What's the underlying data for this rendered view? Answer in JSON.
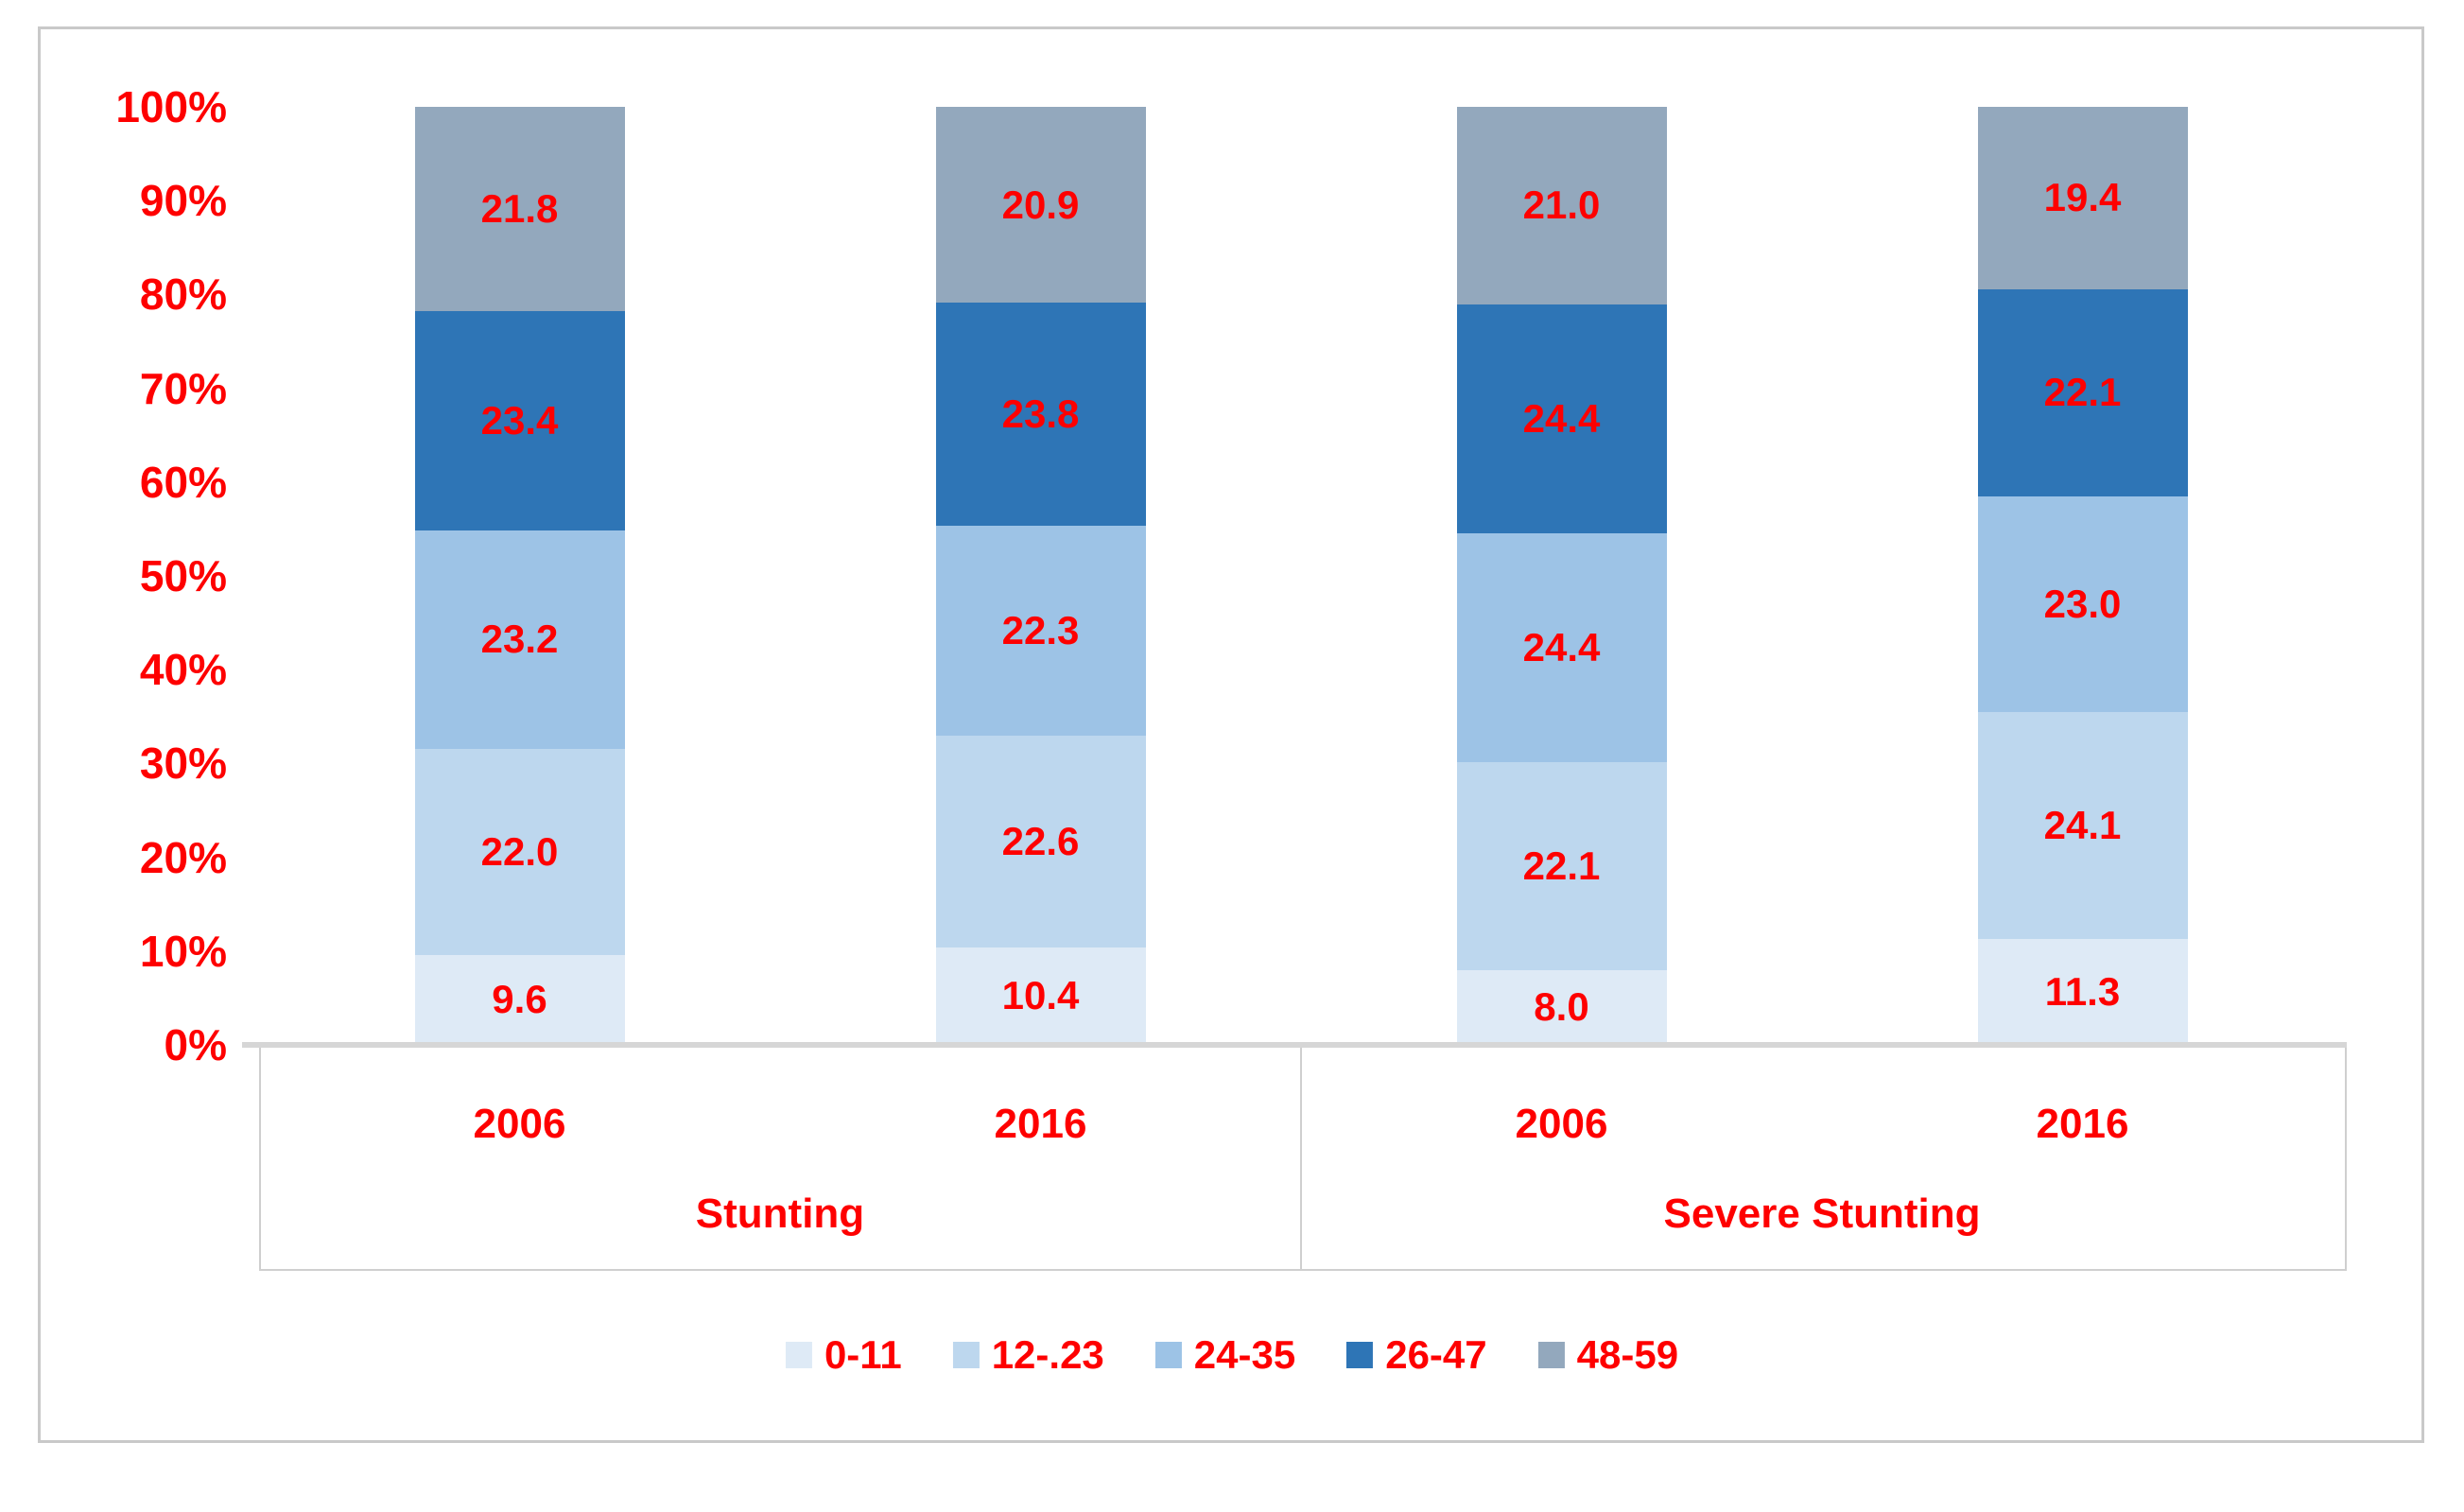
{
  "figure": {
    "background": "#FFFFFF",
    "border_color": "#C9C9C9",
    "text_color": "#FE0000"
  },
  "chart_data": {
    "type": "bar",
    "subtype": "stacked-100-percent-column",
    "title": "",
    "xlabel": "",
    "ylabel": "",
    "grid": false,
    "legend_position": "bottom",
    "axis_label_color": "#FE0000",
    "data_label_color": "#FE0000",
    "y_axis": {
      "min": 0,
      "max": 100,
      "tick_labels": [
        "100%",
        "90%",
        "80%",
        "70%",
        "60%",
        "50%",
        "40%",
        "30%",
        "20%",
        "10%",
        "0%"
      ]
    },
    "series": [
      {
        "name": "0-11",
        "color": "#DEEAF6"
      },
      {
        "name": "12-.23",
        "color": "#BDD7EE"
      },
      {
        "name": "24-35",
        "color": "#9DC3E6"
      },
      {
        "name": "26-47",
        "color": "#2E75B6"
      },
      {
        "name": "48-59",
        "color": "#93A8BD"
      }
    ],
    "groups": [
      {
        "label": "Stunting",
        "bars": [
          {
            "label": "2006",
            "values": [
              9.6,
              22.0,
              23.2,
              23.4,
              21.8
            ]
          },
          {
            "label": "2016",
            "values": [
              10.4,
              22.6,
              22.3,
              23.8,
              20.9
            ]
          }
        ]
      },
      {
        "label": "Severe Stunting",
        "bars": [
          {
            "label": "2006",
            "values": [
              8.0,
              22.1,
              24.4,
              24.4,
              21.0
            ]
          },
          {
            "label": "2016",
            "values": [
              11.3,
              24.1,
              23.0,
              22.1,
              19.4
            ]
          }
        ]
      }
    ]
  }
}
